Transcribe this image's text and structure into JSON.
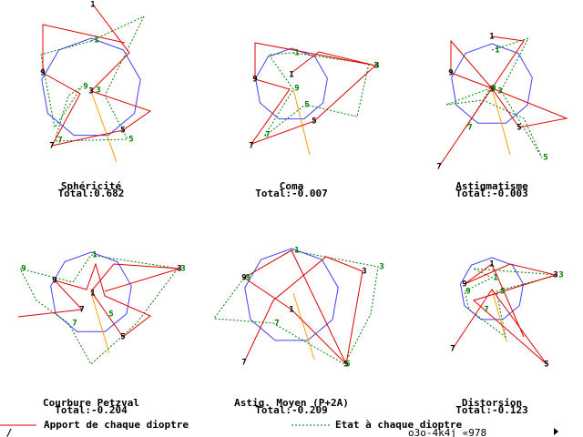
{
  "panels": [
    {
      "title": "Sphéricité",
      "total": "Total:0.682",
      "labels": [
        "1",
        "3",
        "5",
        "7",
        "9"
      ],
      "green_labels": [
        "1",
        "3",
        "5",
        "7",
        "9"
      ]
    },
    {
      "title": "Coma",
      "total": "Total:-0.007",
      "labels": [
        "1",
        "3",
        "5",
        "7",
        "9"
      ],
      "green_labels": [
        "1",
        "3",
        "5",
        "7",
        "9"
      ]
    },
    {
      "title": "Astigmatisme",
      "total": "Total:-0.003",
      "labels": [
        "1",
        "3",
        "5",
        "7",
        "9"
      ],
      "green_labels": [
        "1",
        "3",
        "5",
        "7",
        "9"
      ]
    },
    {
      "title": "Courbure Petzval",
      "total": "Total:-0.204",
      "labels": [
        "1",
        "3",
        "5",
        "7",
        "9"
      ],
      "green_labels": [
        "1",
        "3",
        "5",
        "7",
        "9"
      ]
    },
    {
      "title": "Astig. Moyen (P+2A)",
      "total": "Total:-0.209",
      "labels": [
        "1",
        "3",
        "5",
        "7",
        "9"
      ],
      "green_labels": [
        "1",
        "3",
        "5",
        "7",
        "9"
      ]
    },
    {
      "title": "Distorsion",
      "total": "Total:-0.123",
      "labels": [
        "1",
        "3",
        "5",
        "7",
        "9"
      ],
      "green_labels": [
        "1",
        "3",
        "5",
        "7",
        "9"
      ]
    }
  ],
  "legend": {
    "red": "Apport de chaque dioptre",
    "green": "Etat à chaque dioptre"
  },
  "status": {
    "left": "_/_",
    "code": "o3o-4k4j  «978"
  }
}
